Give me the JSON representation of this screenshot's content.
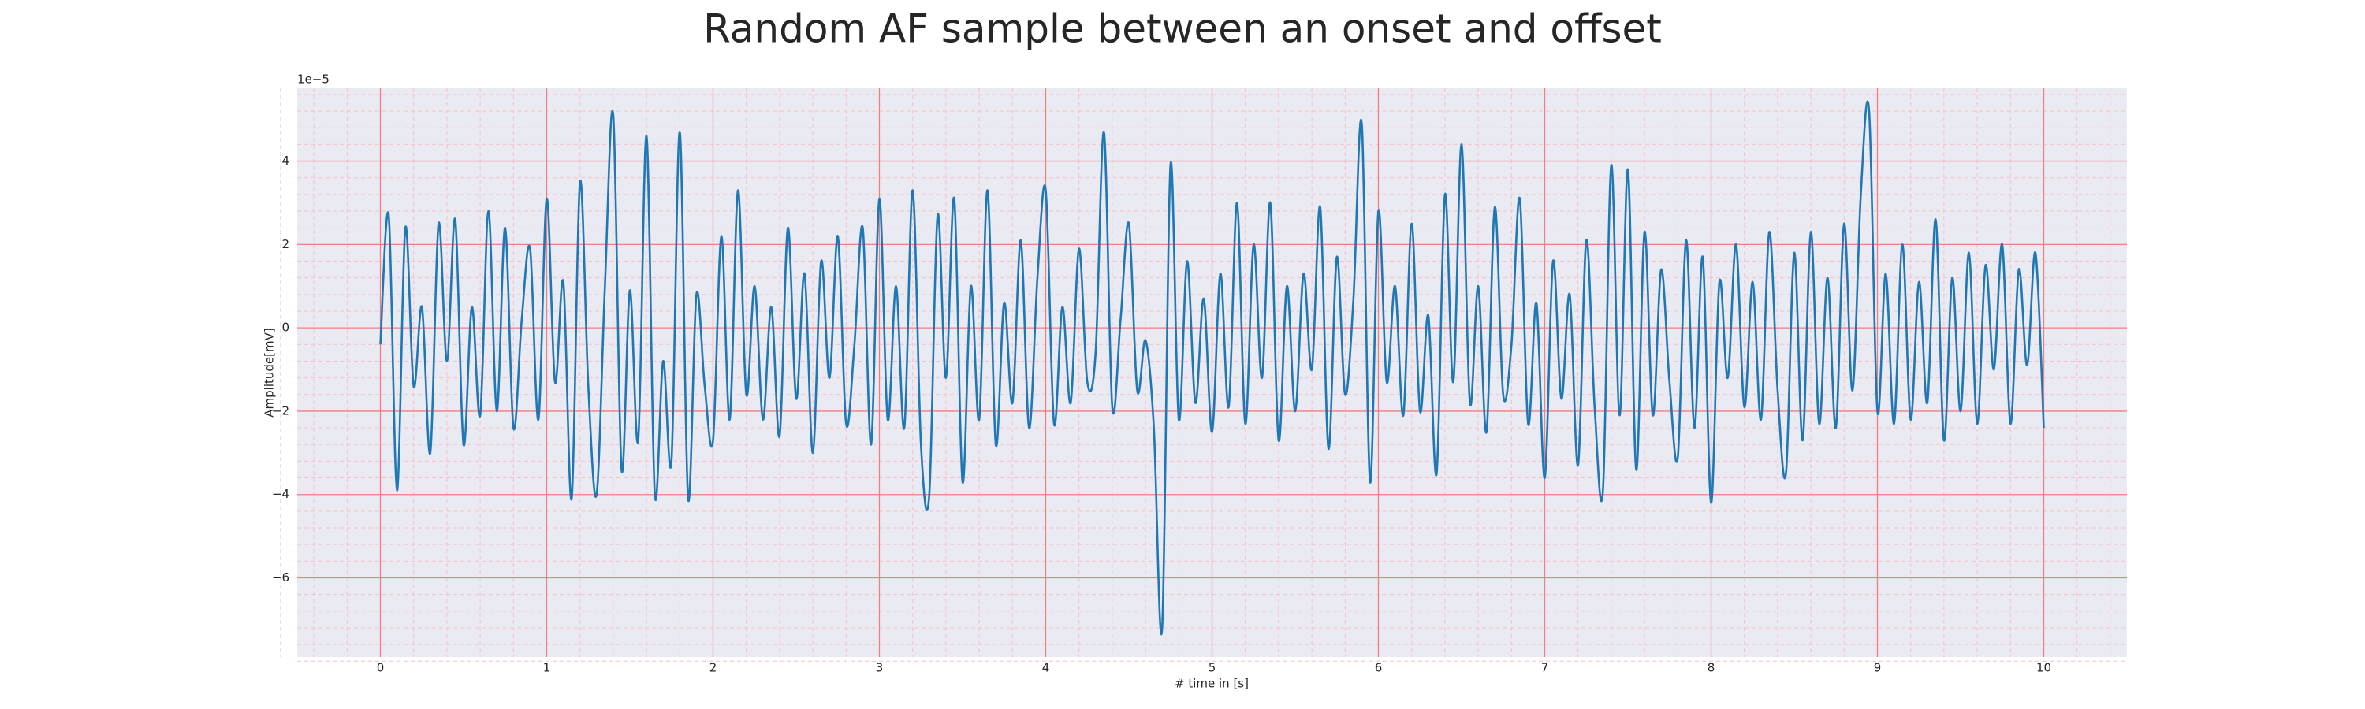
{
  "chart_data": {
    "type": "line",
    "title": "Random AF sample between an onset and offset",
    "x_label": "# time in [s]",
    "y_label": "Amplitude[mV]",
    "y_offset_label": "1e−5",
    "xlim": [
      -0.5,
      10.5
    ],
    "ylim": [
      -7.9,
      5.75
    ],
    "xticks": [
      0,
      1,
      2,
      3,
      4,
      5,
      6,
      7,
      8,
      9,
      10
    ],
    "yticks": [
      {
        "value": -6,
        "label": "−6"
      },
      {
        "value": -4,
        "label": "−4"
      },
      {
        "value": -2,
        "label": "−2"
      },
      0,
      2,
      4
    ],
    "grid": true,
    "minor_grid": true,
    "background": "#eaeaf2",
    "grid_color": "#f08080",
    "minor_grid_color": "#f7c0c8",
    "x": [
      0,
      0.05,
      0.1,
      0.15,
      0.2,
      0.25,
      0.3,
      0.35,
      0.4,
      0.45,
      0.5,
      0.55,
      0.6,
      0.65,
      0.7,
      0.75,
      0.8,
      0.85,
      0.9,
      0.95,
      1,
      1.05,
      1.1,
      1.15,
      1.2,
      1.25,
      1.3,
      1.35,
      1.4,
      1.45,
      1.5,
      1.55,
      1.6,
      1.65,
      1.7,
      1.75,
      1.8,
      1.85,
      1.9,
      1.95,
      2,
      2.05,
      2.1,
      2.15,
      2.2,
      2.25,
      2.3,
      2.35,
      2.4,
      2.45,
      2.5,
      2.55,
      2.6,
      2.65,
      2.7,
      2.75,
      2.8,
      2.85,
      2.9,
      2.95,
      3,
      3.05,
      3.1,
      3.15,
      3.2,
      3.25,
      3.3,
      3.35,
      3.4,
      3.45,
      3.5,
      3.55,
      3.6,
      3.65,
      3.7,
      3.75,
      3.8,
      3.85,
      3.9,
      3.95,
      4,
      4.05,
      4.1,
      4.15,
      4.2,
      4.25,
      4.3,
      4.35,
      4.4,
      4.45,
      4.5,
      4.55,
      4.6,
      4.65,
      4.7,
      4.75,
      4.8,
      4.85,
      4.9,
      4.95,
      5,
      5.05,
      5.1,
      5.15,
      5.2,
      5.25,
      5.3,
      5.35,
      5.4,
      5.45,
      5.5,
      5.55,
      5.6,
      5.65,
      5.7,
      5.75,
      5.8,
      5.85,
      5.9,
      5.95,
      6,
      6.05,
      6.1,
      6.15,
      6.2,
      6.25,
      6.3,
      6.35,
      6.4,
      6.45,
      6.5,
      6.55,
      6.6,
      6.65,
      6.7,
      6.75,
      6.8,
      6.85,
      6.9,
      6.95,
      7,
      7.05,
      7.1,
      7.15,
      7.2,
      7.25,
      7.3,
      7.35,
      7.4,
      7.45,
      7.5,
      7.55,
      7.6,
      7.65,
      7.7,
      7.75,
      7.8,
      7.85,
      7.9,
      7.95,
      8,
      8.05,
      8.1,
      8.15,
      8.2,
      8.25,
      8.3,
      8.35,
      8.4,
      8.45,
      8.5,
      8.55,
      8.6,
      8.65,
      8.7,
      8.75,
      8.8,
      8.85,
      8.9,
      8.95,
      9,
      9.05,
      9.1,
      9.15,
      9.2,
      9.25,
      9.3,
      9.35,
      9.4,
      9.45,
      9.5,
      9.55,
      9.6,
      9.65,
      9.7,
      9.75,
      9.8,
      9.85,
      9.9,
      9.95,
      10
    ],
    "series": [
      {
        "color": "#1f77b4",
        "values": [
          -0.4,
          2.7,
          -3.9,
          2.4,
          -1.4,
          0.5,
          -3.0,
          2.5,
          -0.8,
          2.6,
          -2.8,
          0.5,
          -2.1,
          2.8,
          -2.0,
          2.4,
          -2.4,
          0.2,
          1.9,
          -2.2,
          3.1,
          -1.3,
          1.1,
          -4.1,
          3.5,
          -1.4,
          -4.0,
          1.0,
          5.1,
          -3.4,
          0.9,
          -2.7,
          4.6,
          -4.0,
          -0.8,
          -3.2,
          4.7,
          -4.1,
          0.8,
          -1.4,
          -2.7,
          2.2,
          -2.2,
          3.3,
          -1.6,
          1.0,
          -2.2,
          0.5,
          -2.6,
          2.4,
          -1.7,
          1.3,
          -3.0,
          1.6,
          -1.2,
          2.2,
          -2.3,
          -0.4,
          2.4,
          -2.8,
          3.1,
          -2.2,
          1.0,
          -2.4,
          3.3,
          -2.8,
          -4.0,
          2.7,
          -1.2,
          3.1,
          -3.7,
          1.0,
          -2.2,
          3.3,
          -2.8,
          0.6,
          -1.8,
          2.1,
          -2.4,
          1.2,
          3.3,
          -2.3,
          0.5,
          -1.8,
          1.9,
          -1.3,
          -0.6,
          4.7,
          -1.9,
          0.2,
          2.5,
          -1.5,
          -0.3,
          -2.4,
          -7.2,
          3.9,
          -2.2,
          1.6,
          -1.8,
          0.7,
          -2.5,
          1.3,
          -1.9,
          3.0,
          -2.3,
          2.0,
          -1.2,
          3.0,
          -2.7,
          1.0,
          -2.0,
          1.3,
          -1.0,
          2.9,
          -2.9,
          1.7,
          -1.6,
          0.7,
          4.9,
          -3.7,
          2.8,
          -1.3,
          1.0,
          -2.1,
          2.5,
          -2.0,
          0.3,
          -3.5,
          3.2,
          -1.3,
          4.4,
          -1.8,
          1.0,
          -2.5,
          2.9,
          -1.6,
          -0.4,
          3.1,
          -2.3,
          0.6,
          -3.6,
          1.6,
          -1.7,
          0.8,
          -3.3,
          2.1,
          -1.9,
          -3.9,
          3.9,
          -2.1,
          3.8,
          -3.4,
          2.3,
          -2.1,
          1.4,
          -1.3,
          -3.1,
          2.1,
          -2.4,
          1.7,
          -4.2,
          1.1,
          -1.2,
          2.0,
          -1.9,
          1.1,
          -2.2,
          2.3,
          -1.5,
          -3.5,
          1.8,
          -2.7,
          2.3,
          -2.3,
          1.2,
          -2.4,
          2.5,
          -1.5,
          3.2,
          5.2,
          -2.0,
          1.3,
          -2.3,
          2.0,
          -2.2,
          1.1,
          -1.8,
          2.6,
          -2.7,
          1.2,
          -2.0,
          1.8,
          -2.3,
          1.5,
          -1.0,
          2.0,
          -2.3,
          1.4,
          -0.9,
          1.8,
          -2.4
        ]
      }
    ]
  }
}
